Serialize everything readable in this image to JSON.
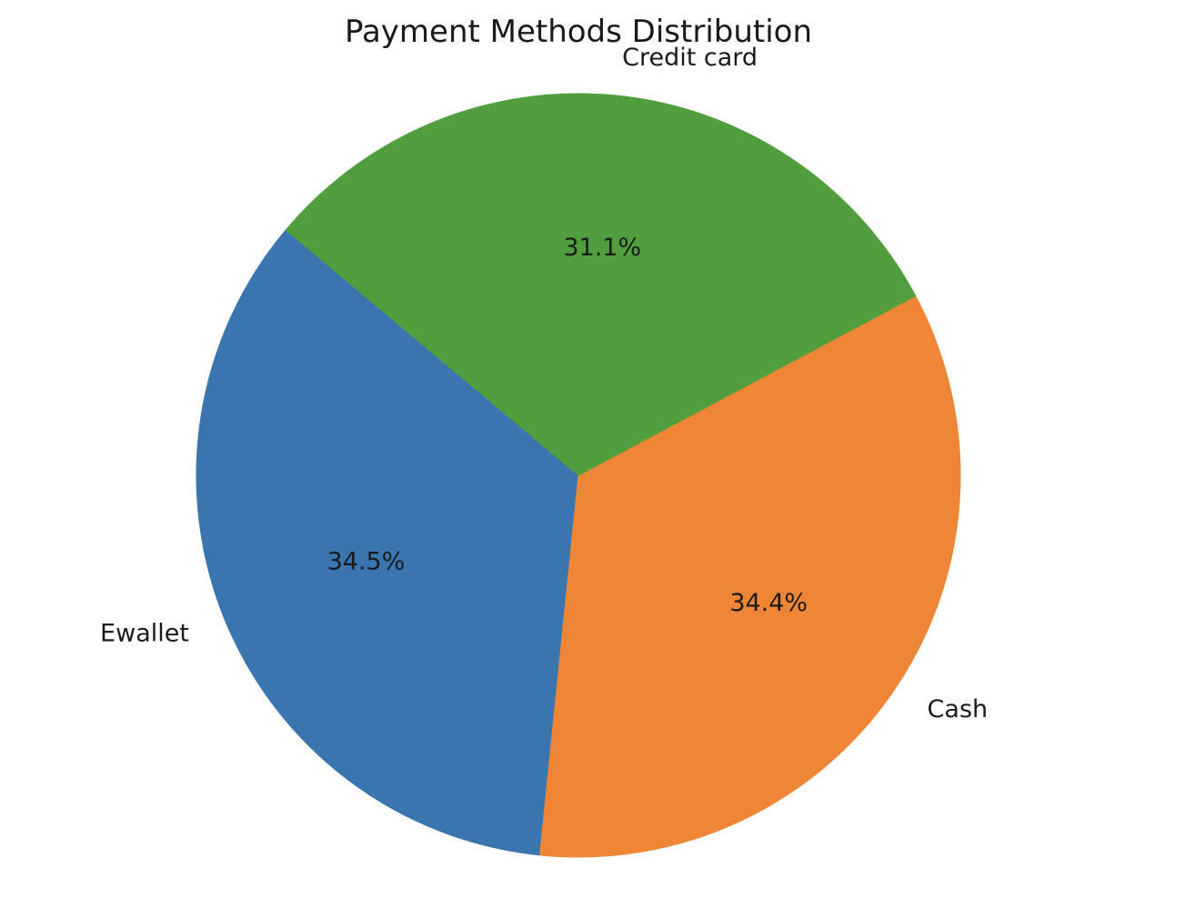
{
  "chart_data": {
    "type": "pie",
    "title": "Payment Methods Distribution",
    "slices": [
      {
        "label": "Ewallet",
        "value": 34.5,
        "pct_label": "34.5%",
        "color": "#3a75af"
      },
      {
        "label": "Cash",
        "value": 34.4,
        "pct_label": "34.4%",
        "color": "#ef8636"
      },
      {
        "label": "Credit card",
        "value": 31.1,
        "pct_label": "31.1%",
        "color": "#529e3e"
      }
    ],
    "start_angle": 140,
    "direction": "counterclockwise"
  }
}
